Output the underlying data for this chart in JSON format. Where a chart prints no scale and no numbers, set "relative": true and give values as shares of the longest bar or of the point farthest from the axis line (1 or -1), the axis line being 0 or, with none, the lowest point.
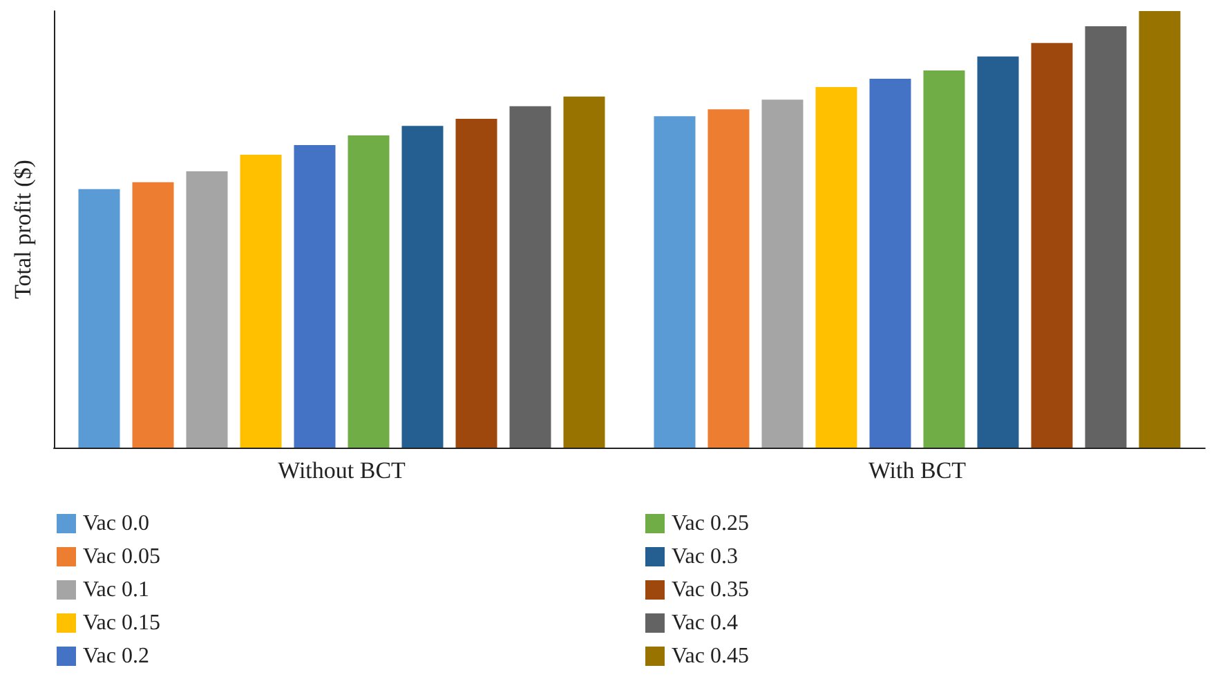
{
  "chart_data": {
    "type": "bar",
    "relative": true,
    "ylabel": "Total profit ($)",
    "categories": [
      "Without BCT",
      "With BCT"
    ],
    "legend": "bottom",
    "grid": false,
    "series": [
      {
        "name": "Vac 0.0",
        "color": "#5b9bd5",
        "values": [
          0.592,
          0.759
        ]
      },
      {
        "name": "Vac 0.05",
        "color": "#ed7d31",
        "values": [
          0.608,
          0.775
        ]
      },
      {
        "name": "Vac 0.1",
        "color": "#a5a5a5",
        "values": [
          0.633,
          0.797
        ]
      },
      {
        "name": "Vac 0.15",
        "color": "#ffc000",
        "values": [
          0.671,
          0.826
        ]
      },
      {
        "name": "Vac 0.2",
        "color": "#4472c4",
        "values": [
          0.693,
          0.845
        ]
      },
      {
        "name": "Vac 0.25",
        "color": "#70ad47",
        "values": [
          0.715,
          0.864
        ]
      },
      {
        "name": "Vac 0.3",
        "color": "#255e91",
        "values": [
          0.737,
          0.896
        ]
      },
      {
        "name": "Vac 0.35",
        "color": "#9e480e",
        "values": [
          0.753,
          0.927
        ]
      },
      {
        "name": "Vac 0.4",
        "color": "#636363",
        "values": [
          0.782,
          0.965
        ]
      },
      {
        "name": "Vac 0.45",
        "color": "#997300",
        "values": [
          0.804,
          1
        ]
      }
    ]
  }
}
